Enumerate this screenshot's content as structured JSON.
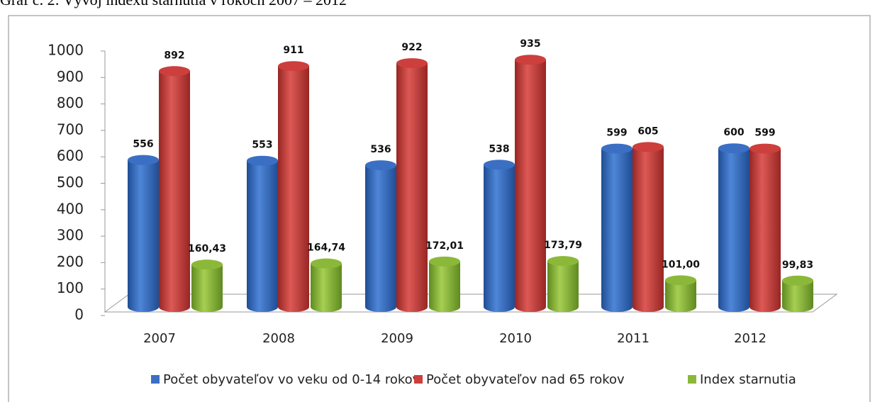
{
  "chart_data": {
    "type": "bar3d",
    "title": "Graf č. 2: Vývoj indexu starnutia v rokoch 2007 – 2012",
    "categories": [
      "2007",
      "2008",
      "2009",
      "2010",
      "2011",
      "2012"
    ],
    "series": [
      {
        "name": "Počet obyvateľov vo veku od 0-14 rokov",
        "color": "#3a6fc4",
        "values": [
          556,
          553,
          536,
          538,
          599,
          600
        ]
      },
      {
        "name": "Počet obyvateľov nad 65 rokov",
        "color": "#cc3f3c",
        "values": [
          892,
          911,
          922,
          935,
          605,
          599
        ]
      },
      {
        "name": "Index starnutia",
        "color": "#8cb83a",
        "values": [
          160.43,
          164.74,
          172.01,
          173.79,
          101.0,
          99.83
        ],
        "value_labels": [
          "160,43",
          "164,74",
          "172,01",
          "173,79",
          "101,00",
          "99,83"
        ]
      }
    ],
    "ylim": [
      0,
      1000
    ],
    "yticks": [
      0,
      100,
      200,
      300,
      400,
      500,
      600,
      700,
      800,
      900,
      1000
    ],
    "legend": "bottom"
  }
}
